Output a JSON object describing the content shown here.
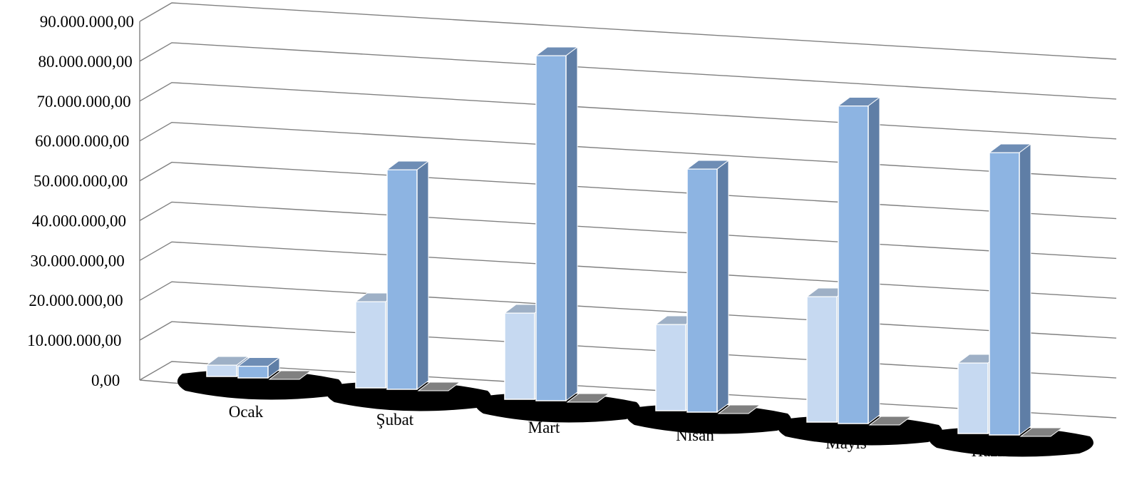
{
  "chart_data": {
    "type": "bar",
    "categories": [
      "Ocak",
      "Şubat",
      "Mart",
      "Nisan",
      "Mayıs",
      "Haziran"
    ],
    "series": [
      {
        "values": [
          2000000,
          22000000,
          22000000,
          22000000,
          32000000,
          18000000
        ]
      },
      {
        "values": [
          3000000,
          56000000,
          88000000,
          62000000,
          81000000,
          72000000
        ]
      },
      {
        "values": [
          0,
          0,
          0,
          0,
          0,
          0
        ]
      }
    ],
    "ylim": [
      0,
      90000000
    ],
    "yticks": [
      "0,00",
      "10.000.000,00",
      "20.000.000,00",
      "30.000.000,00",
      "40.000.000,00",
      "50.000.000,00",
      "60.000.000,00",
      "70.000.000,00",
      "80.000.000,00",
      "90.000.000,00"
    ],
    "grid": true,
    "legend": "none",
    "colors": {
      "s1_front": "#c6d9f1",
      "s1_top": "#9eb0c6",
      "s1_side": "#8fa3bd",
      "s2_front": "#8db4e2",
      "s2_top": "#6e8db5",
      "s2_side": "#5f7ea6",
      "s3_top": "#808080",
      "grid": "#808080",
      "floor_shadow": "#000000"
    }
  }
}
